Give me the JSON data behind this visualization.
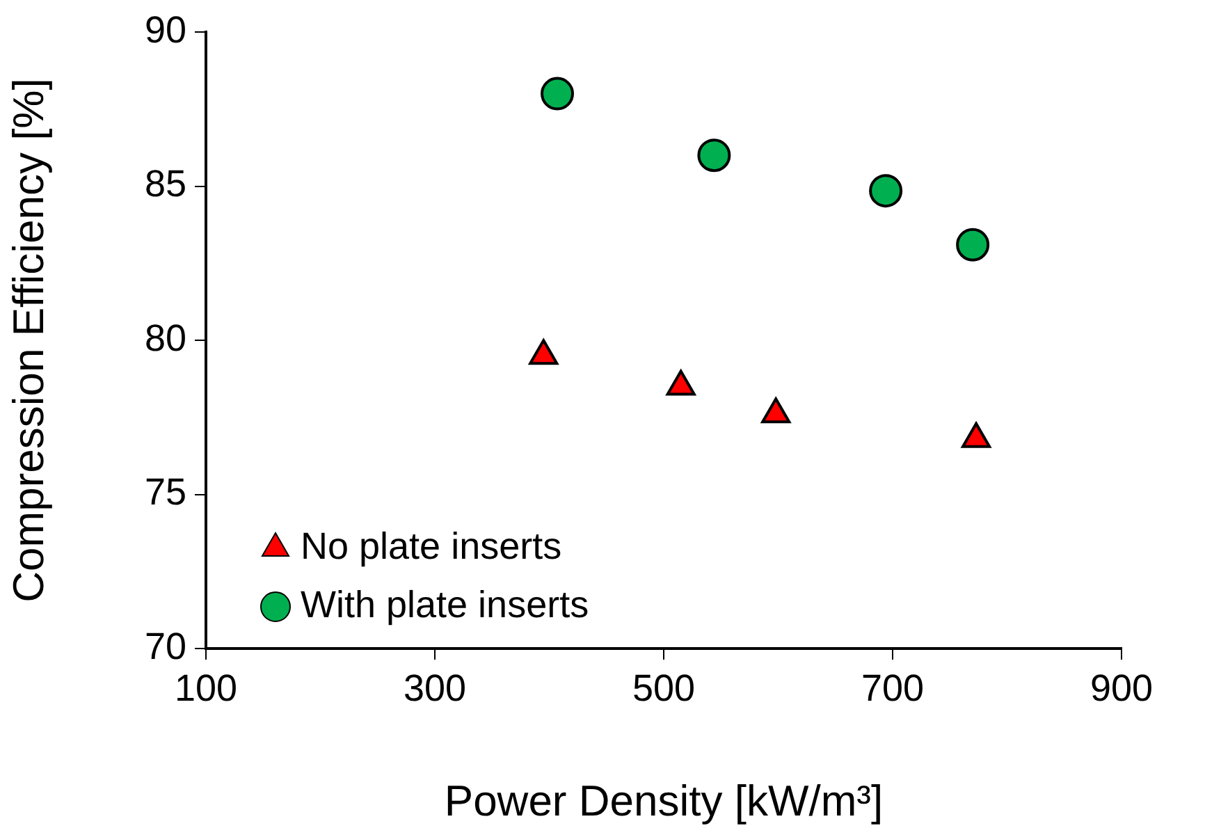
{
  "chart_data": {
    "type": "scatter",
    "xlabel": "Power Density [kW/m³]",
    "ylabel": "Compression Efficiency [%]",
    "series": [
      {
        "name": "No plate inserts",
        "color": "#ff0000",
        "marker": "triangle",
        "x": [
          395,
          515,
          598,
          773
        ],
        "values": [
          79.5,
          78.5,
          77.6,
          76.8
        ]
      },
      {
        "name": "With plate inserts",
        "color": "#00b050",
        "marker": "circle",
        "x": [
          407,
          544,
          694,
          770
        ],
        "values": [
          88.0,
          86.0,
          84.85,
          83.1
        ]
      }
    ],
    "xlim": [
      100,
      900
    ],
    "xticks": [
      100,
      300,
      500,
      700,
      900
    ],
    "ylim": [
      70,
      90
    ],
    "yticks": [
      70,
      75,
      80,
      85,
      90
    ],
    "grid": false,
    "legend": "bottom left"
  }
}
